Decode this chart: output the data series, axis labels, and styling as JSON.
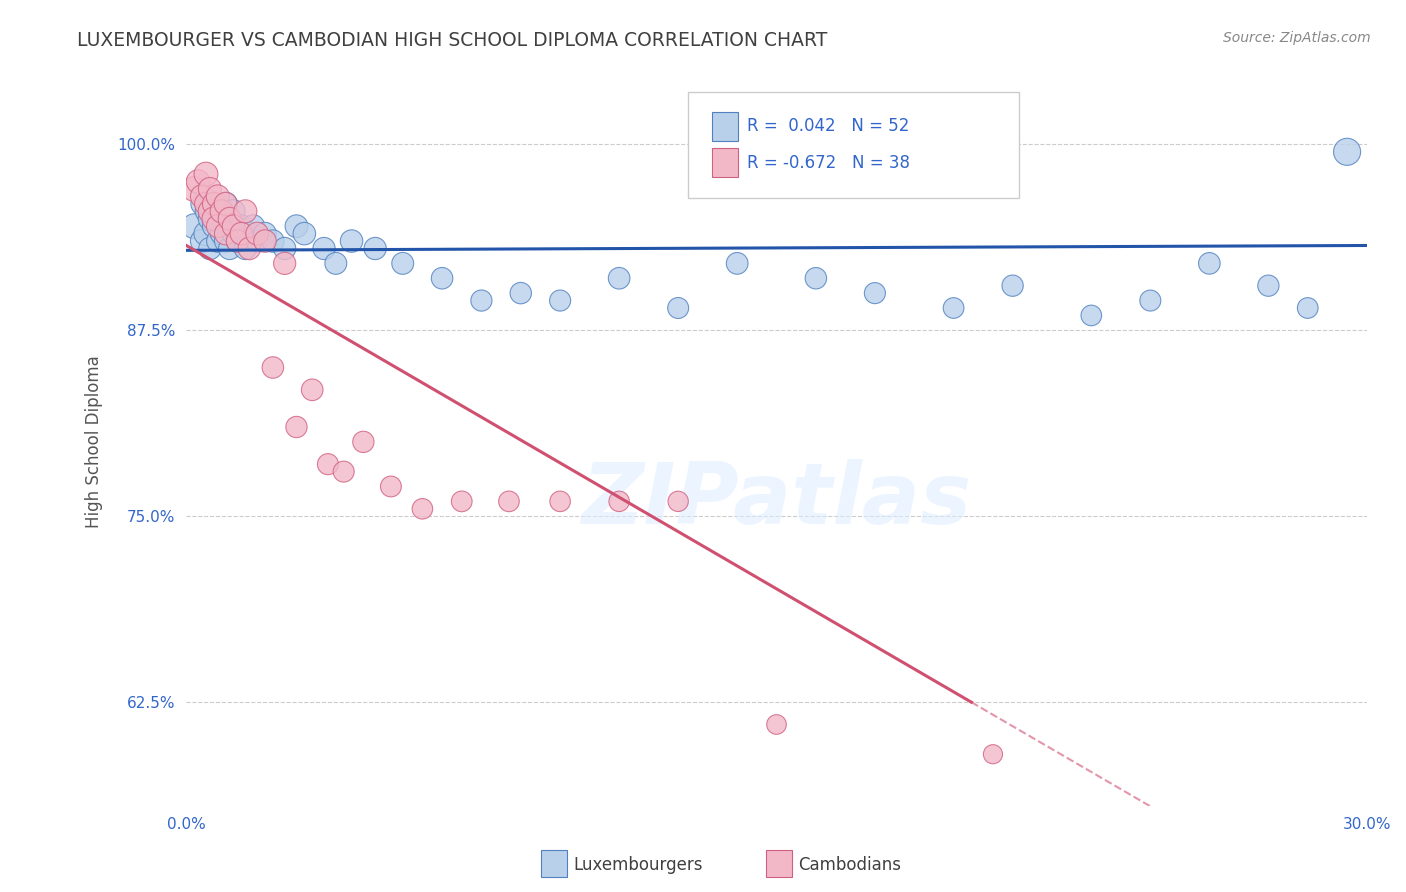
{
  "title": "LUXEMBOURGER VS CAMBODIAN HIGH SCHOOL DIPLOMA CORRELATION CHART",
  "source": "Source: ZipAtlas.com",
  "ylabel": "High School Diploma",
  "xlabel_lux": "Luxembourgers",
  "xlabel_cam": "Cambodians",
  "watermark": "ZIPatlas",
  "xlim": [
    0.0,
    0.3
  ],
  "ylim": [
    0.555,
    1.045
  ],
  "xticks": [
    0.0,
    0.05,
    0.1,
    0.15,
    0.2,
    0.25,
    0.3
  ],
  "xtick_labels": [
    "0.0%",
    "",
    "",
    "",
    "",
    "",
    "30.0%"
  ],
  "yticks": [
    0.625,
    0.75,
    0.875,
    1.0
  ],
  "ytick_labels": [
    "62.5%",
    "75.0%",
    "87.5%",
    "100.0%"
  ],
  "lux_R": 0.042,
  "lux_N": 52,
  "cam_R": -0.672,
  "cam_N": 38,
  "lux_dot_color": "#b8d0ea",
  "cam_dot_color": "#f2b8c8",
  "lux_edge_color": "#5080c0",
  "cam_edge_color": "#d06080",
  "lux_line_color": "#2255aa",
  "cam_line_color": "#d05070",
  "grid_color": "#cccccc",
  "title_color": "#404040",
  "axis_label_color": "#555555",
  "source_color": "#888888",
  "tick_color": "#3366cc",
  "lux_scatter_x": [
    0.002,
    0.004,
    0.004,
    0.005,
    0.005,
    0.006,
    0.006,
    0.007,
    0.007,
    0.008,
    0.008,
    0.009,
    0.009,
    0.01,
    0.01,
    0.011,
    0.011,
    0.012,
    0.012,
    0.013,
    0.014,
    0.015,
    0.016,
    0.017,
    0.018,
    0.02,
    0.022,
    0.025,
    0.028,
    0.03,
    0.035,
    0.038,
    0.042,
    0.048,
    0.055,
    0.065,
    0.075,
    0.085,
    0.095,
    0.11,
    0.125,
    0.14,
    0.16,
    0.175,
    0.195,
    0.21,
    0.23,
    0.245,
    0.26,
    0.275,
    0.285,
    0.295
  ],
  "lux_scatter_y": [
    0.945,
    0.935,
    0.96,
    0.94,
    0.955,
    0.95,
    0.93,
    0.945,
    0.96,
    0.935,
    0.955,
    0.94,
    0.95,
    0.935,
    0.96,
    0.945,
    0.93,
    0.94,
    0.955,
    0.935,
    0.945,
    0.93,
    0.94,
    0.945,
    0.935,
    0.94,
    0.935,
    0.93,
    0.945,
    0.94,
    0.93,
    0.92,
    0.935,
    0.93,
    0.92,
    0.91,
    0.895,
    0.9,
    0.895,
    0.91,
    0.89,
    0.92,
    0.91,
    0.9,
    0.89,
    0.905,
    0.885,
    0.895,
    0.92,
    0.905,
    0.89,
    0.995
  ],
  "cam_scatter_x": [
    0.002,
    0.003,
    0.004,
    0.005,
    0.005,
    0.006,
    0.006,
    0.007,
    0.007,
    0.008,
    0.008,
    0.009,
    0.01,
    0.01,
    0.011,
    0.012,
    0.013,
    0.014,
    0.015,
    0.016,
    0.018,
    0.02,
    0.022,
    0.025,
    0.028,
    0.032,
    0.036,
    0.04,
    0.045,
    0.052,
    0.06,
    0.07,
    0.082,
    0.095,
    0.11,
    0.125,
    0.15,
    0.205
  ],
  "cam_scatter_y": [
    0.97,
    0.975,
    0.965,
    0.96,
    0.98,
    0.955,
    0.97,
    0.96,
    0.95,
    0.965,
    0.945,
    0.955,
    0.96,
    0.94,
    0.95,
    0.945,
    0.935,
    0.94,
    0.955,
    0.93,
    0.94,
    0.935,
    0.85,
    0.92,
    0.81,
    0.835,
    0.785,
    0.78,
    0.8,
    0.77,
    0.755,
    0.76,
    0.76,
    0.76,
    0.76,
    0.76,
    0.61,
    0.59
  ],
  "lux_dot_sizes": [
    320,
    280,
    260,
    300,
    240,
    280,
    260,
    270,
    290,
    260,
    280,
    265,
    275,
    260,
    285,
    270,
    255,
    265,
    280,
    260,
    270,
    255,
    265,
    270,
    258,
    265,
    260,
    255,
    268,
    262,
    255,
    248,
    262,
    256,
    248,
    240,
    232,
    238,
    230,
    242,
    228,
    245,
    238,
    230,
    222,
    235,
    220,
    228,
    242,
    234,
    222,
    380
  ],
  "cam_dot_sizes": [
    320,
    290,
    280,
    270,
    295,
    282,
    275,
    270,
    288,
    276,
    268,
    278,
    274,
    260,
    270,
    265,
    258,
    263,
    276,
    260,
    268,
    262,
    240,
    255,
    235,
    242,
    230,
    228,
    235,
    225,
    218,
    222,
    220,
    218,
    216,
    214,
    200,
    190
  ]
}
